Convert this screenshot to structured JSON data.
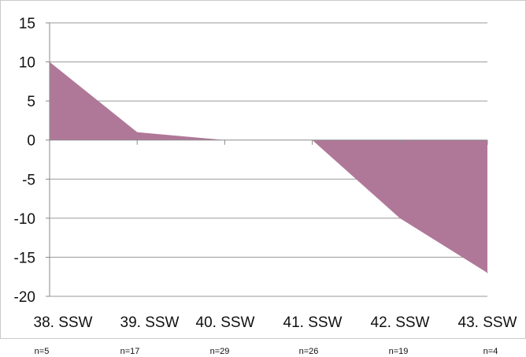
{
  "chart_data": {
    "type": "area",
    "categories": [
      "38. SSW",
      "39. SSW",
      "40. SSW",
      "41. SSW",
      "42. SSW",
      "43. SSW"
    ],
    "values": [
      10,
      1,
      0,
      0,
      -10,
      -17
    ],
    "sample_sizes": [
      "n=5",
      "n=17",
      "n=29",
      "n=26",
      "n=19",
      "n=4"
    ],
    "y_ticks": [
      "15",
      "10",
      "5",
      "0",
      "-5",
      "-10",
      "-15",
      "-20"
    ],
    "ylim": [
      -20,
      15
    ],
    "title": "",
    "xlabel": "",
    "ylabel": "",
    "grid": true,
    "legend": "none",
    "fill_color": "#b07898"
  }
}
